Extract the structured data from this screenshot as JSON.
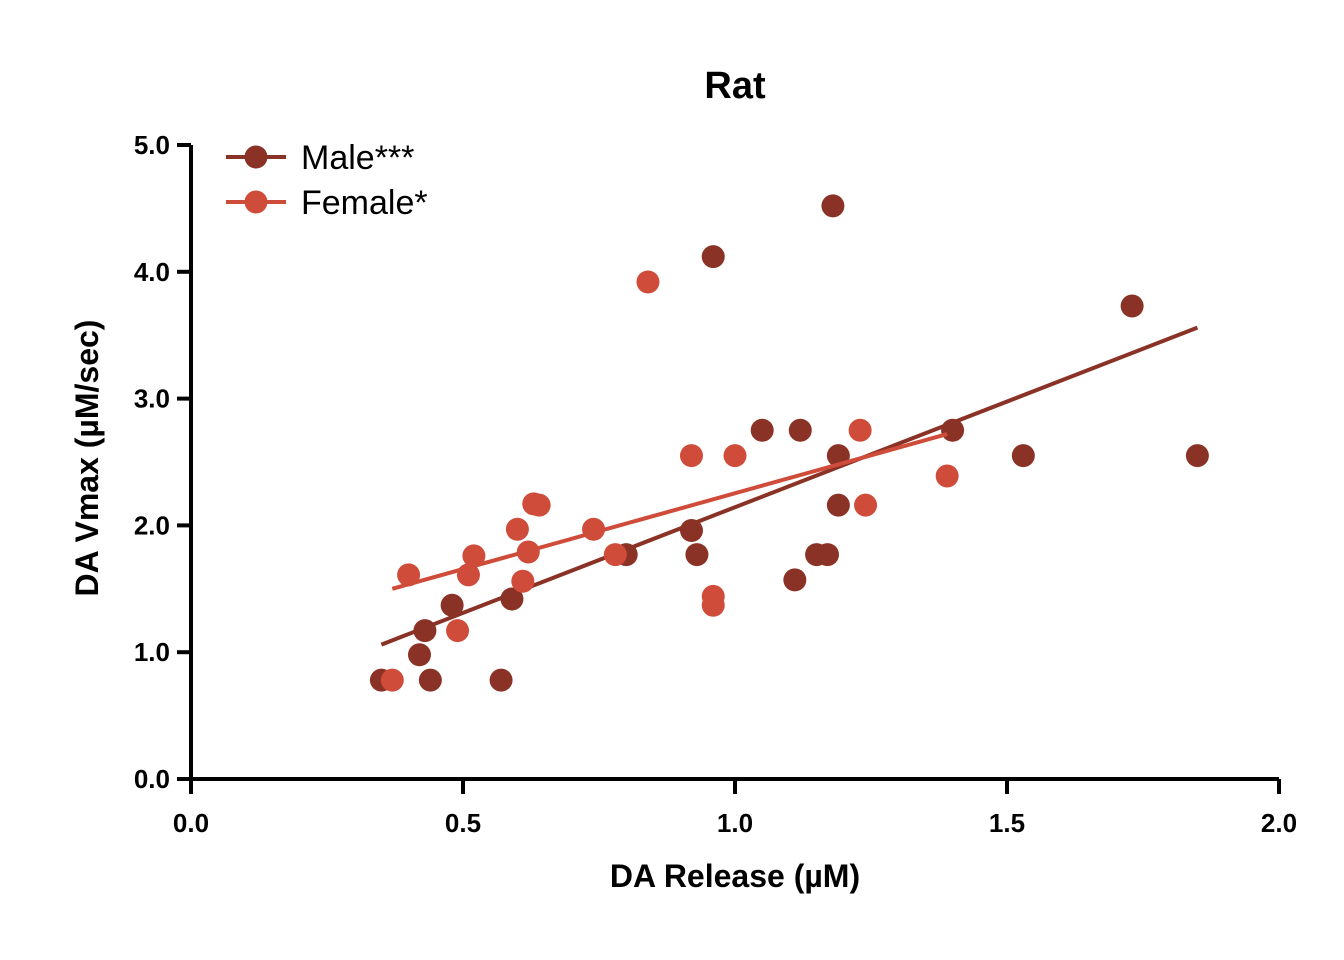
{
  "chart_data": {
    "type": "scatter",
    "title": "Rat",
    "xlabel": "DA Release (µM)",
    "ylabel": "DA Vmax (µM/sec)",
    "xlim": [
      0,
      2
    ],
    "ylim": [
      0,
      5
    ],
    "x_ticks": [
      "0.0",
      "0.5",
      "1.0",
      "1.5",
      "2.0"
    ],
    "y_ticks": [
      "0.0",
      "1.0",
      "2.0",
      "3.0",
      "4.0",
      "5.0"
    ],
    "legend_position": "top-left",
    "grid": false,
    "series": [
      {
        "name": "Male***",
        "color": "#8b3226",
        "points": [
          [
            0.35,
            0.78
          ],
          [
            0.42,
            0.98
          ],
          [
            0.43,
            1.17
          ],
          [
            0.44,
            0.78
          ],
          [
            0.48,
            1.37
          ],
          [
            0.57,
            0.78
          ],
          [
            0.59,
            1.42
          ],
          [
            0.8,
            1.77
          ],
          [
            0.92,
            1.96
          ],
          [
            0.93,
            1.77
          ],
          [
            0.96,
            4.12
          ],
          [
            1.05,
            2.75
          ],
          [
            1.11,
            1.57
          ],
          [
            1.12,
            2.75
          ],
          [
            1.15,
            1.77
          ],
          [
            1.17,
            1.77
          ],
          [
            1.18,
            4.52
          ],
          [
            1.19,
            2.55
          ],
          [
            1.19,
            2.16
          ],
          [
            1.4,
            2.75
          ],
          [
            1.53,
            2.55
          ],
          [
            1.73,
            3.73
          ],
          [
            1.85,
            2.55
          ]
        ],
        "fit": [
          [
            0.35,
            1.06
          ],
          [
            1.85,
            3.56
          ]
        ]
      },
      {
        "name": "Female*",
        "color": "#d04c3a",
        "points": [
          [
            0.37,
            0.78
          ],
          [
            0.4,
            1.61
          ],
          [
            0.49,
            1.17
          ],
          [
            0.51,
            1.61
          ],
          [
            0.52,
            1.76
          ],
          [
            0.6,
            1.97
          ],
          [
            0.61,
            1.56
          ],
          [
            0.62,
            1.79
          ],
          [
            0.63,
            2.17
          ],
          [
            0.64,
            2.16
          ],
          [
            0.74,
            1.97
          ],
          [
            0.78,
            1.77
          ],
          [
            0.84,
            3.92
          ],
          [
            0.92,
            2.55
          ],
          [
            0.96,
            1.44
          ],
          [
            0.96,
            1.37
          ],
          [
            1.0,
            2.55
          ],
          [
            1.23,
            2.75
          ],
          [
            1.24,
            2.16
          ],
          [
            1.39,
            2.39
          ]
        ],
        "fit": [
          [
            0.37,
            1.5
          ],
          [
            1.39,
            2.72
          ]
        ]
      }
    ]
  }
}
